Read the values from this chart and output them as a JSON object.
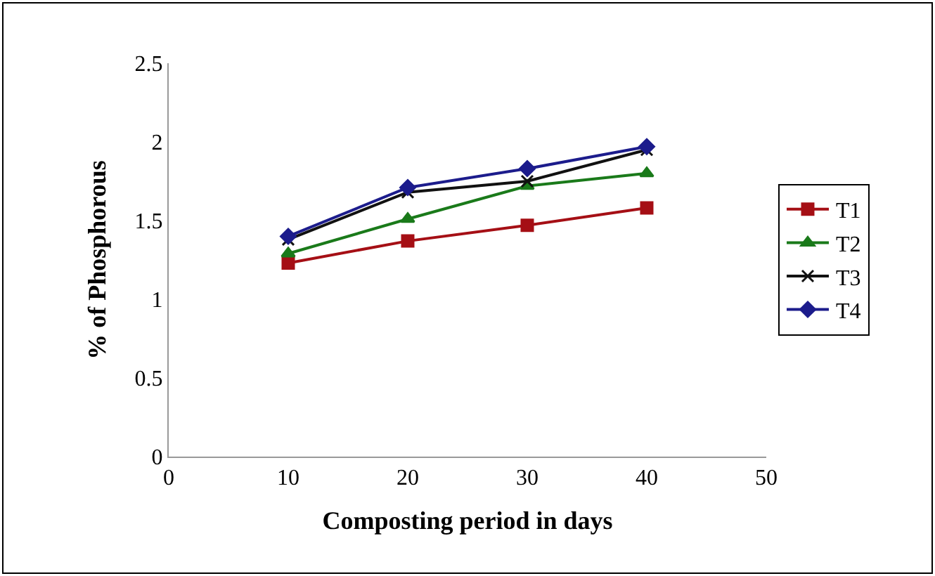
{
  "chart_data": {
    "type": "line",
    "xlabel": "Composting period in days",
    "ylabel": "% of Phosphorous",
    "x": [
      10,
      20,
      30,
      40
    ],
    "series": [
      {
        "name": "T1",
        "color": "#a50f15",
        "marker": "square",
        "values": [
          1.23,
          1.37,
          1.47,
          1.58
        ]
      },
      {
        "name": "T2",
        "color": "#1a7a1a",
        "marker": "triangle",
        "values": [
          1.29,
          1.51,
          1.72,
          1.8
        ]
      },
      {
        "name": "T3",
        "color": "#111111",
        "marker": "cross",
        "values": [
          1.38,
          1.68,
          1.75,
          1.95
        ]
      },
      {
        "name": "T4",
        "color": "#1c1c8c",
        "marker": "diamond",
        "values": [
          1.4,
          1.71,
          1.83,
          1.97
        ]
      }
    ],
    "xlim": [
      0,
      50
    ],
    "xticks": [
      0,
      10,
      20,
      30,
      40,
      50
    ],
    "ylim": [
      0,
      2.5
    ],
    "yticks": [
      0,
      0.5,
      1,
      1.5,
      2,
      2.5
    ],
    "legend": "right",
    "line_style": "solid"
  }
}
